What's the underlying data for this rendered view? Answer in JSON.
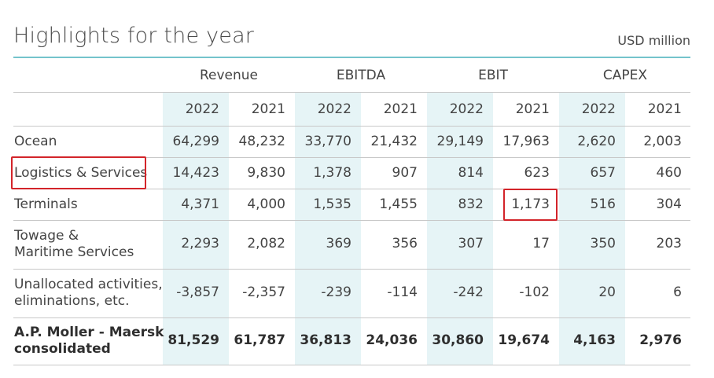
{
  "title": "Highlights for the year",
  "unit": "USD million",
  "groups": [
    "Revenue",
    "EBITDA",
    "EBIT",
    "CAPEX"
  ],
  "years": [
    "2022",
    "2021",
    "2022",
    "2021",
    "2022",
    "2021",
    "2022",
    "2021"
  ],
  "rows": [
    {
      "label": "Ocean",
      "values": [
        "64,299",
        "48,232",
        "33,770",
        "21,432",
        "29,149",
        "17,963",
        "2,620",
        "2,003"
      ]
    },
    {
      "label": "Logistics & Services",
      "values": [
        "14,423",
        "9,830",
        "1,378",
        "907",
        "814",
        "623",
        "657",
        "460"
      ]
    },
    {
      "label": "Terminals",
      "values": [
        "4,371",
        "4,000",
        "1,535",
        "1,455",
        "832",
        "1,173",
        "516",
        "304"
      ]
    },
    {
      "label_line1": "Towage &",
      "label_line2": "Maritime Services",
      "values": [
        "2,293",
        "2,082",
        "369",
        "356",
        "307",
        "17",
        "350",
        "203"
      ]
    },
    {
      "label_line1": "Unallocated activities,",
      "label_line2": "eliminations, etc.",
      "values": [
        "-3,857",
        "-2,357",
        "-239",
        "-114",
        "-242",
        "-102",
        "20",
        "6"
      ]
    },
    {
      "label_line1": "A.P. Moller - Maersk",
      "label_line2": "consolidated",
      "values": [
        "81,529",
        "61,787",
        "36,813",
        "24,036",
        "30,860",
        "19,674",
        "4,163",
        "2,976"
      ]
    }
  ],
  "colors": {
    "accent": "#74c4cc",
    "shade": "#e6f4f6",
    "highlight": "#d3242a"
  }
}
